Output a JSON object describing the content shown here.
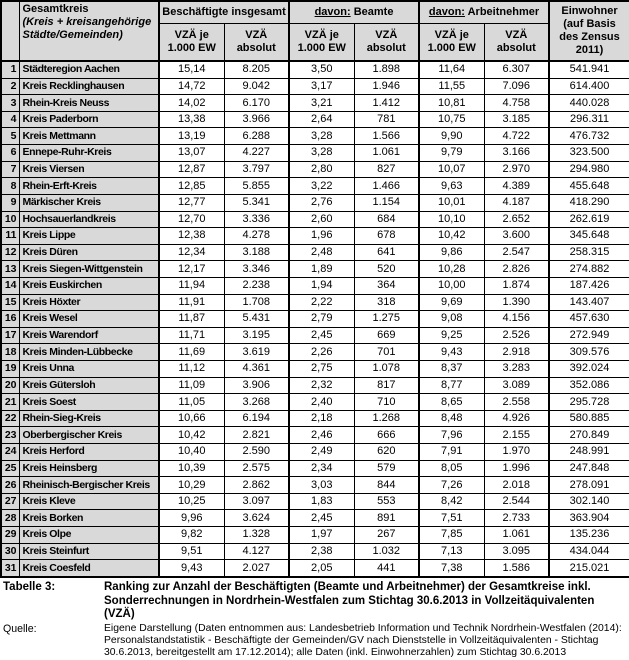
{
  "table": {
    "header": {
      "col1_title": "Gesamtkreis",
      "col1_subtitle": "(Kreis + kreisangehörige Städte/Gemeinden)",
      "group_insgesamt": "Beschäftigte insgesamt",
      "davon_prefix": "davon:",
      "group_beamte": "Beamte",
      "group_arbeitnehmer": "Arbeitnehmer",
      "einwohner": "Einwohner (auf Basis des Zensus 2011)",
      "sub_vza_je": "VZÄ je 1.000 EW",
      "sub_vza_abs": "VZÄ absolut"
    },
    "rows": [
      {
        "rank": "1",
        "name": "Städteregion Aachen",
        "vza_je_ew": "15,14",
        "vza_absolut": "8.205",
        "beamte_vza_je_ew": "3,50",
        "beamte_vza_absolut": "1.898",
        "arbeitnehmer_vza_je_ew": "11,64",
        "arbeitnehmer_vza_absolut": "6.307",
        "einwohner": "541.941"
      },
      {
        "rank": "2",
        "name": "Kreis Recklinghausen",
        "vza_je_ew": "14,72",
        "vza_absolut": "9.042",
        "beamte_vza_je_ew": "3,17",
        "beamte_vza_absolut": "1.946",
        "arbeitnehmer_vza_je_ew": "11,55",
        "arbeitnehmer_vza_absolut": "7.096",
        "einwohner": "614.400"
      },
      {
        "rank": "3",
        "name": "Rhein-Kreis Neuss",
        "vza_je_ew": "14,02",
        "vza_absolut": "6.170",
        "beamte_vza_je_ew": "3,21",
        "beamte_vza_absolut": "1.412",
        "arbeitnehmer_vza_je_ew": "10,81",
        "arbeitnehmer_vza_absolut": "4.758",
        "einwohner": "440.028"
      },
      {
        "rank": "4",
        "name": "Kreis Paderborn",
        "vza_je_ew": "13,38",
        "vza_absolut": "3.966",
        "beamte_vza_je_ew": "2,64",
        "beamte_vza_absolut": "781",
        "arbeitnehmer_vza_je_ew": "10,75",
        "arbeitnehmer_vza_absolut": "3.185",
        "einwohner": "296.311"
      },
      {
        "rank": "5",
        "name": "Kreis Mettmann",
        "vza_je_ew": "13,19",
        "vza_absolut": "6.288",
        "beamte_vza_je_ew": "3,28",
        "beamte_vza_absolut": "1.566",
        "arbeitnehmer_vza_je_ew": "9,90",
        "arbeitnehmer_vza_absolut": "4.722",
        "einwohner": "476.732"
      },
      {
        "rank": "6",
        "name": "Ennepe-Ruhr-Kreis",
        "vza_je_ew": "13,07",
        "vza_absolut": "4.227",
        "beamte_vza_je_ew": "3,28",
        "beamte_vza_absolut": "1.061",
        "arbeitnehmer_vza_je_ew": "9,79",
        "arbeitnehmer_vza_absolut": "3.166",
        "einwohner": "323.500"
      },
      {
        "rank": "7",
        "name": "Kreis Viersen",
        "vza_je_ew": "12,87",
        "vza_absolut": "3.797",
        "beamte_vza_je_ew": "2,80",
        "beamte_vza_absolut": "827",
        "arbeitnehmer_vza_je_ew": "10,07",
        "arbeitnehmer_vza_absolut": "2.970",
        "einwohner": "294.980"
      },
      {
        "rank": "8",
        "name": "Rhein-Erft-Kreis",
        "vza_je_ew": "12,85",
        "vza_absolut": "5.855",
        "beamte_vza_je_ew": "3,22",
        "beamte_vza_absolut": "1.466",
        "arbeitnehmer_vza_je_ew": "9,63",
        "arbeitnehmer_vza_absolut": "4.389",
        "einwohner": "455.648"
      },
      {
        "rank": "9",
        "name": "Märkischer Kreis",
        "vza_je_ew": "12,77",
        "vza_absolut": "5.341",
        "beamte_vza_je_ew": "2,76",
        "beamte_vza_absolut": "1.154",
        "arbeitnehmer_vza_je_ew": "10,01",
        "arbeitnehmer_vza_absolut": "4.187",
        "einwohner": "418.290"
      },
      {
        "rank": "10",
        "name": "Hochsauerlandkreis",
        "vza_je_ew": "12,70",
        "vza_absolut": "3.336",
        "beamte_vza_je_ew": "2,60",
        "beamte_vza_absolut": "684",
        "arbeitnehmer_vza_je_ew": "10,10",
        "arbeitnehmer_vza_absolut": "2.652",
        "einwohner": "262.619"
      },
      {
        "rank": "11",
        "name": "Kreis Lippe",
        "vza_je_ew": "12,38",
        "vza_absolut": "4.278",
        "beamte_vza_je_ew": "1,96",
        "beamte_vza_absolut": "678",
        "arbeitnehmer_vza_je_ew": "10,42",
        "arbeitnehmer_vza_absolut": "3.600",
        "einwohner": "345.648"
      },
      {
        "rank": "12",
        "name": "Kreis Düren",
        "vza_je_ew": "12,34",
        "vza_absolut": "3.188",
        "beamte_vza_je_ew": "2,48",
        "beamte_vza_absolut": "641",
        "arbeitnehmer_vza_je_ew": "9,86",
        "arbeitnehmer_vza_absolut": "2.547",
        "einwohner": "258.315"
      },
      {
        "rank": "13",
        "name": "Kreis Siegen-Wittgenstein",
        "vza_je_ew": "12,17",
        "vza_absolut": "3.346",
        "beamte_vza_je_ew": "1,89",
        "beamte_vza_absolut": "520",
        "arbeitnehmer_vza_je_ew": "10,28",
        "arbeitnehmer_vza_absolut": "2.826",
        "einwohner": "274.882"
      },
      {
        "rank": "14",
        "name": "Kreis Euskirchen",
        "vza_je_ew": "11,94",
        "vza_absolut": "2.238",
        "beamte_vza_je_ew": "1,94",
        "beamte_vza_absolut": "364",
        "arbeitnehmer_vza_je_ew": "10,00",
        "arbeitnehmer_vza_absolut": "1.874",
        "einwohner": "187.426"
      },
      {
        "rank": "15",
        "name": "Kreis Höxter",
        "vza_je_ew": "11,91",
        "vza_absolut": "1.708",
        "beamte_vza_je_ew": "2,22",
        "beamte_vza_absolut": "318",
        "arbeitnehmer_vza_je_ew": "9,69",
        "arbeitnehmer_vza_absolut": "1.390",
        "einwohner": "143.407"
      },
      {
        "rank": "16",
        "name": "Kreis Wesel",
        "vza_je_ew": "11,87",
        "vza_absolut": "5.431",
        "beamte_vza_je_ew": "2,79",
        "beamte_vza_absolut": "1.275",
        "arbeitnehmer_vza_je_ew": "9,08",
        "arbeitnehmer_vza_absolut": "4.156",
        "einwohner": "457.630"
      },
      {
        "rank": "17",
        "name": "Kreis Warendorf",
        "vza_je_ew": "11,71",
        "vza_absolut": "3.195",
        "beamte_vza_je_ew": "2,45",
        "beamte_vza_absolut": "669",
        "arbeitnehmer_vza_je_ew": "9,25",
        "arbeitnehmer_vza_absolut": "2.526",
        "einwohner": "272.949"
      },
      {
        "rank": "18",
        "name": "Kreis Minden-Lübbecke",
        "vza_je_ew": "11,69",
        "vza_absolut": "3.619",
        "beamte_vza_je_ew": "2,26",
        "beamte_vza_absolut": "701",
        "arbeitnehmer_vza_je_ew": "9,43",
        "arbeitnehmer_vza_absolut": "2.918",
        "einwohner": "309.576"
      },
      {
        "rank": "19",
        "name": "Kreis Unna",
        "vza_je_ew": "11,12",
        "vza_absolut": "4.361",
        "beamte_vza_je_ew": "2,75",
        "beamte_vza_absolut": "1.078",
        "arbeitnehmer_vza_je_ew": "8,37",
        "arbeitnehmer_vza_absolut": "3.283",
        "einwohner": "392.024"
      },
      {
        "rank": "20",
        "name": "Kreis Gütersloh",
        "vza_je_ew": "11,09",
        "vza_absolut": "3.906",
        "beamte_vza_je_ew": "2,32",
        "beamte_vza_absolut": "817",
        "arbeitnehmer_vza_je_ew": "8,77",
        "arbeitnehmer_vza_absolut": "3.089",
        "einwohner": "352.086"
      },
      {
        "rank": "21",
        "name": "Kreis Soest",
        "vza_je_ew": "11,05",
        "vza_absolut": "3.268",
        "beamte_vza_je_ew": "2,40",
        "beamte_vza_absolut": "710",
        "arbeitnehmer_vza_je_ew": "8,65",
        "arbeitnehmer_vza_absolut": "2.558",
        "einwohner": "295.728"
      },
      {
        "rank": "22",
        "name": "Rhein-Sieg-Kreis",
        "vza_je_ew": "10,66",
        "vza_absolut": "6.194",
        "beamte_vza_je_ew": "2,18",
        "beamte_vza_absolut": "1.268",
        "arbeitnehmer_vza_je_ew": "8,48",
        "arbeitnehmer_vza_absolut": "4.926",
        "einwohner": "580.885"
      },
      {
        "rank": "23",
        "name": "Oberbergischer Kreis",
        "vza_je_ew": "10,42",
        "vza_absolut": "2.821",
        "beamte_vza_je_ew": "2,46",
        "beamte_vza_absolut": "666",
        "arbeitnehmer_vza_je_ew": "7,96",
        "arbeitnehmer_vza_absolut": "2.155",
        "einwohner": "270.849"
      },
      {
        "rank": "24",
        "name": "Kreis Herford",
        "vza_je_ew": "10,40",
        "vza_absolut": "2.590",
        "beamte_vza_je_ew": "2,49",
        "beamte_vza_absolut": "620",
        "arbeitnehmer_vza_je_ew": "7,91",
        "arbeitnehmer_vza_absolut": "1.970",
        "einwohner": "248.991"
      },
      {
        "rank": "25",
        "name": "Kreis Heinsberg",
        "vza_je_ew": "10,39",
        "vza_absolut": "2.575",
        "beamte_vza_je_ew": "2,34",
        "beamte_vza_absolut": "579",
        "arbeitnehmer_vza_je_ew": "8,05",
        "arbeitnehmer_vza_absolut": "1.996",
        "einwohner": "247.848"
      },
      {
        "rank": "26",
        "name": "Rheinisch-Bergischer Kreis",
        "vza_je_ew": "10,29",
        "vza_absolut": "2.862",
        "beamte_vza_je_ew": "3,03",
        "beamte_vza_absolut": "844",
        "arbeitnehmer_vza_je_ew": "7,26",
        "arbeitnehmer_vza_absolut": "2.018",
        "einwohner": "278.091"
      },
      {
        "rank": "27",
        "name": "Kreis Kleve",
        "vza_je_ew": "10,25",
        "vza_absolut": "3.097",
        "beamte_vza_je_ew": "1,83",
        "beamte_vza_absolut": "553",
        "arbeitnehmer_vza_je_ew": "8,42",
        "arbeitnehmer_vza_absolut": "2.544",
        "einwohner": "302.140"
      },
      {
        "rank": "28",
        "name": "Kreis Borken",
        "vza_je_ew": "9,96",
        "vza_absolut": "3.624",
        "beamte_vza_je_ew": "2,45",
        "beamte_vza_absolut": "891",
        "arbeitnehmer_vza_je_ew": "7,51",
        "arbeitnehmer_vza_absolut": "2.733",
        "einwohner": "363.904"
      },
      {
        "rank": "29",
        "name": "Kreis Olpe",
        "vza_je_ew": "9,82",
        "vza_absolut": "1.328",
        "beamte_vza_je_ew": "1,97",
        "beamte_vza_absolut": "267",
        "arbeitnehmer_vza_je_ew": "7,85",
        "arbeitnehmer_vza_absolut": "1.061",
        "einwohner": "135.236"
      },
      {
        "rank": "30",
        "name": "Kreis Steinfurt",
        "vza_je_ew": "9,51",
        "vza_absolut": "4.127",
        "beamte_vza_je_ew": "2,38",
        "beamte_vza_absolut": "1.032",
        "arbeitnehmer_vza_je_ew": "7,13",
        "arbeitnehmer_vza_absolut": "3.095",
        "einwohner": "434.044"
      },
      {
        "rank": "31",
        "name": "Kreis Coesfeld",
        "vza_je_ew": "9,43",
        "vza_absolut": "2.027",
        "beamte_vza_je_ew": "2,05",
        "beamte_vza_absolut": "441",
        "arbeitnehmer_vza_je_ew": "7,38",
        "arbeitnehmer_vza_absolut": "1.586",
        "einwohner": "215.021"
      }
    ]
  },
  "footer": {
    "table_label": "Tabelle 3:",
    "table_title": "Ranking zur Anzahl der Beschäftigten (Beamte und Arbeitnehmer) der Gesamtkreise inkl. Sonderrechnungen in Nordrhein-Westfalen zum Stichtag 30.6.2013 in Vollzeitäquivalenten (VZÄ)",
    "source_label": "Quelle:",
    "source_text": "Eigene Darstellung (Daten entnommen aus: Landesbetrieb Information und Technik Nordrhein-Westfalen (2014): Personalstandstatistik - Beschäftigte der Gemeinden/GV nach Dienststelle in Vollzeitäquivalenten - Stichtag 30.6.2013, bereitgestellt am 17.12.2014); alle Daten (inkl. Einwohnerzahlen) zum Stichtag 30.6.2013"
  },
  "colors": {
    "header_bg": "#d9d9d9",
    "row_label_bg": "#d9d9d9",
    "cell_bg": "#ffffff",
    "border": "#000000",
    "text": "#000000"
  }
}
